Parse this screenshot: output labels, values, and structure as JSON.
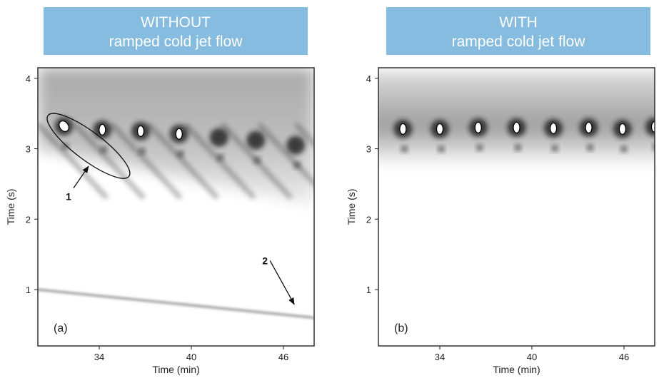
{
  "banners": {
    "left": {
      "line1": "WITHOUT",
      "line2": "ramped cold jet flow"
    },
    "right": {
      "line1": "WITH",
      "line2": "ramped cold jet flow"
    }
  },
  "colors": {
    "banner_bg": "#86bce0",
    "banner_text": "#ffffff"
  },
  "chart_data": [
    {
      "type": "heatmap",
      "panel_label": "(a)",
      "xlabel": "Time (min)",
      "ylabel": "Time (s)",
      "xlim": [
        30,
        48
      ],
      "ylim": [
        0.2,
        4.15
      ],
      "xticks": [
        34,
        40,
        46
      ],
      "yticks": [
        1,
        2,
        3,
        4
      ],
      "colormap": "grayscale (white = low, black = high)",
      "peaks": [
        {
          "x": 31.7,
          "y": 3.32,
          "saturated": true
        },
        {
          "x": 34.2,
          "y": 3.27,
          "saturated": true
        },
        {
          "x": 36.7,
          "y": 3.25,
          "saturated": true
        },
        {
          "x": 39.2,
          "y": 3.21,
          "saturated": true
        },
        {
          "x": 41.8,
          "y": 3.16
        },
        {
          "x": 44.2,
          "y": 3.12
        },
        {
          "x": 46.8,
          "y": 3.05
        }
      ],
      "bleed_line": {
        "x": [
          30,
          48
        ],
        "y": [
          1.0,
          0.6
        ]
      },
      "annotations": [
        {
          "text": "1",
          "x": 32.0,
          "y": 2.27,
          "arrow_to": [
            33.3,
            2.75
          ]
        },
        {
          "text": "2",
          "x": 44.8,
          "y": 1.36,
          "arrow_to": [
            46.7,
            0.79
          ]
        }
      ],
      "ellipse": {
        "cx": 33.3,
        "cy": 3.04,
        "rx_min": 3.3,
        "ry_s": 0.2
      }
    },
    {
      "type": "heatmap",
      "panel_label": "(b)",
      "xlabel": "Time (min)",
      "ylabel": "Time (s)",
      "xlim": [
        30,
        48
      ],
      "ylim": [
        0.2,
        4.15
      ],
      "xticks": [
        34,
        40,
        46
      ],
      "yticks": [
        1,
        2,
        3,
        4
      ],
      "colormap": "grayscale (white = low, black = high)",
      "peaks": [
        {
          "x": 31.6,
          "y": 3.28,
          "saturated": true
        },
        {
          "x": 34.0,
          "y": 3.28,
          "saturated": true
        },
        {
          "x": 36.5,
          "y": 3.3,
          "saturated": true
        },
        {
          "x": 39.0,
          "y": 3.3,
          "saturated": true
        },
        {
          "x": 41.4,
          "y": 3.29,
          "saturated": true
        },
        {
          "x": 43.7,
          "y": 3.3,
          "saturated": true
        },
        {
          "x": 45.9,
          "y": 3.28,
          "saturated": true
        },
        {
          "x": 48.0,
          "y": 3.31,
          "saturated": true
        }
      ]
    }
  ]
}
